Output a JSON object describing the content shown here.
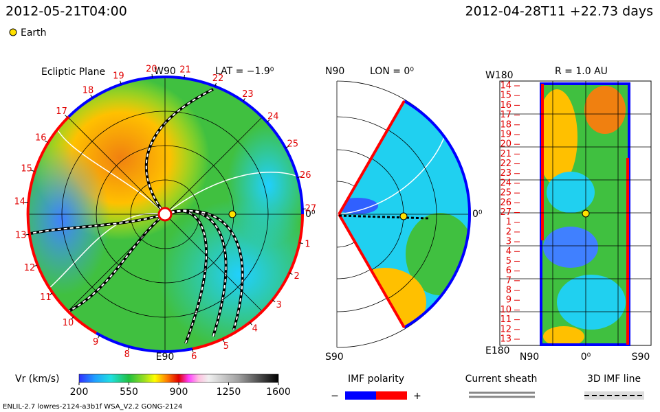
{
  "header": {
    "date": "2012-05-21T04:00",
    "run": "2012-04-28T11 +22.73 days"
  },
  "legend": {
    "earth": "Earth"
  },
  "ecliptic": {
    "title": "Ecliptic Plane",
    "top": "W90",
    "lat": "LAT = −1.9⁰",
    "bottom": "E90",
    "right": "0⁰",
    "day_labels": [
      "1",
      "2",
      "3",
      "4",
      "5",
      "6",
      null,
      "8",
      "9",
      "10",
      "11",
      "12",
      "13",
      "14",
      "15",
      "16",
      "17",
      "18",
      "19",
      "20",
      "21",
      "22",
      "23",
      "24",
      "25",
      "26",
      "27"
    ]
  },
  "meridian": {
    "north": "N90",
    "title": "LON = 0⁰",
    "south": "S90",
    "right": "0⁰"
  },
  "sphere": {
    "title": "R = 1.0 AU",
    "top": "W180",
    "bottom": "E180",
    "x_labels": [
      "N90",
      "0⁰",
      "S90"
    ],
    "day_labels": [
      "14",
      "15",
      "16",
      "17",
      "18",
      "19",
      "20",
      "21",
      "22",
      "23",
      "24",
      "25",
      "26",
      "27",
      "1",
      "2",
      "3",
      "4",
      "5",
      "6",
      "7",
      "8",
      "9",
      "10",
      "11",
      "12",
      "13"
    ]
  },
  "colorbar": {
    "label": "Vr (km/s)",
    "ticks": [
      200,
      550,
      900,
      1250,
      1600
    ]
  },
  "imf": {
    "title": "IMF polarity",
    "minus": "−",
    "plus": "+"
  },
  "sheath": {
    "title": "Current sheath"
  },
  "imf_line": {
    "title": "3D IMF line"
  },
  "footer": "ENLIL-2.7 lowres-2124-a3b1f WSA_V2.2 GONG-2124"
}
